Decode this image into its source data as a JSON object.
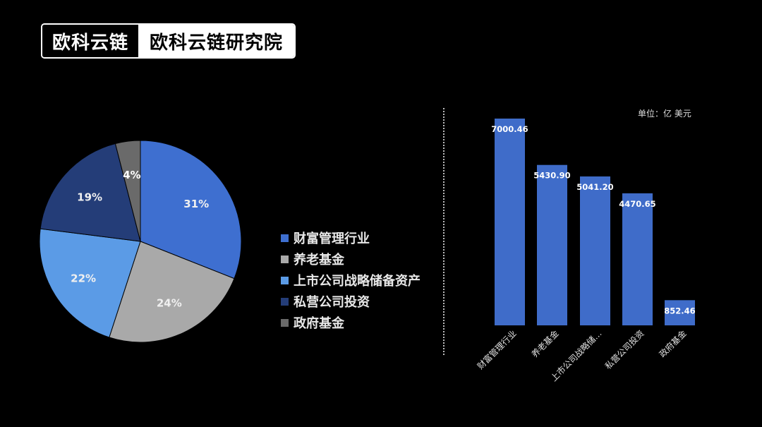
{
  "header": {
    "brand_logo_text": "欧科云链",
    "brand_title": "欧科云链研究院"
  },
  "colors": {
    "background": "#000000",
    "series": [
      "#3e6fd0",
      "#a9a9a9",
      "#5b9be6",
      "#243d78",
      "#6a6a6a"
    ],
    "bar": "#3f6cc9"
  },
  "chart_data": [
    {
      "type": "pie",
      "categories": [
        "财富管理行业",
        "养老基金",
        "上市公司战略储备资产",
        "私营公司投资",
        "政府基金"
      ],
      "values": [
        31,
        24,
        22,
        19,
        4
      ],
      "data_labels": [
        "31%",
        "24%",
        "22%",
        "19%",
        "4%"
      ],
      "legend_position": "right",
      "legend": [
        "财富管理行业",
        "养老基金",
        "上市公司战略储备资产",
        "私营公司投资",
        "政府基金"
      ]
    },
    {
      "type": "bar",
      "unit_label": "单位：亿 美元",
      "categories": [
        "财富管理行业",
        "养老基金",
        "上市公司战略储…",
        "私营公司投资",
        "政府基金"
      ],
      "values": [
        7000.46,
        5430.9,
        5041.2,
        4470.65,
        852.46
      ],
      "data_labels": [
        "7000.46",
        "5430.90",
        "5041.20",
        "4470.65",
        "852.46"
      ],
      "ylim": [
        0,
        7000.46
      ]
    }
  ]
}
